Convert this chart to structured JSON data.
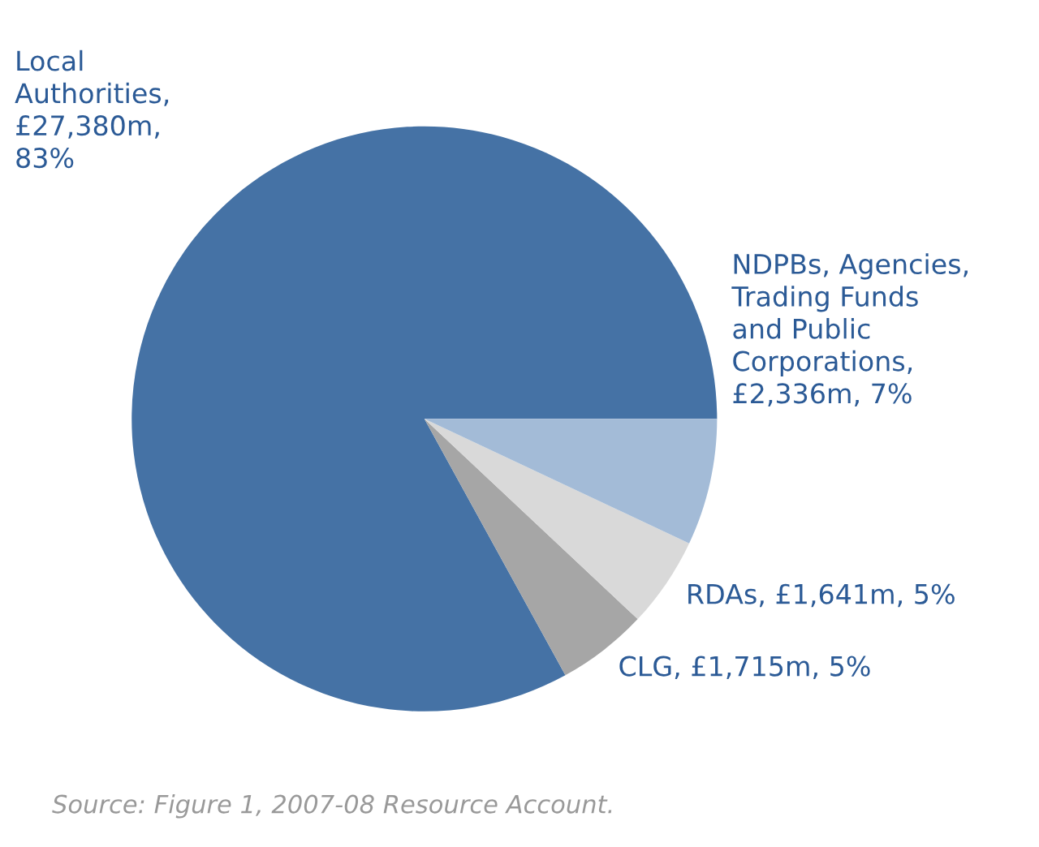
{
  "chart_data": {
    "type": "pie",
    "categories": [
      "Local Authorities, £27,380m, 83%",
      "CLG, £1,715m, 5%",
      "RDAs, £1,641m, 5%",
      "NDPBs, Agencies, Trading Funds and Public Corporations, £2,336m, 7%"
    ],
    "values": [
      83,
      5,
      5,
      7
    ],
    "colors": [
      "#4572a5",
      "#a6a6a6",
      "#d9d9d9",
      "#a3bbd7"
    ],
    "annotations": [
      "Source: Figure 1, 2007-08 Resource Account."
    ]
  }
}
